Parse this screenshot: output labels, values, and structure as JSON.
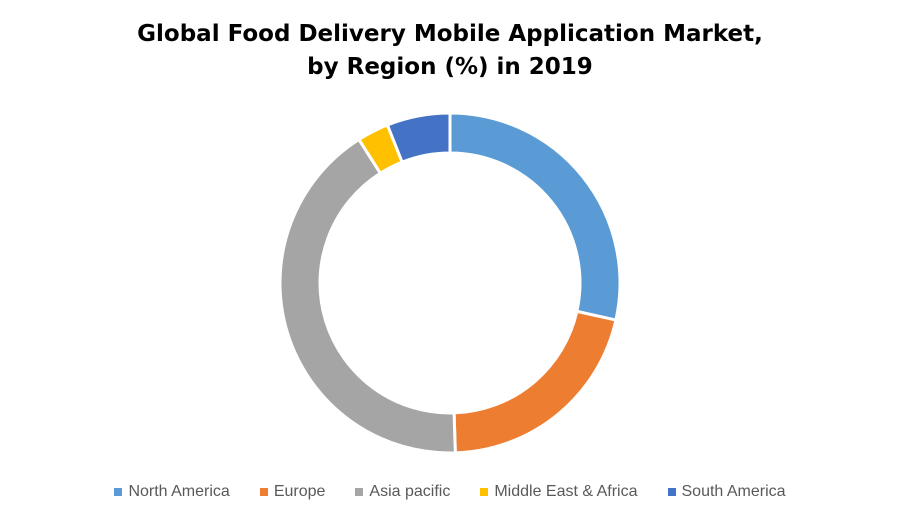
{
  "chart_data": {
    "type": "pie",
    "title": "Global Food Delivery Mobile Application Market,",
    "subtitle": "by Region (%) in 2019",
    "categories": [
      "North America",
      "Europe",
      "Asia pacific",
      "Middle East & Africa",
      "South America"
    ],
    "values": [
      28.5,
      21,
      41.5,
      3,
      6
    ],
    "colors": [
      "#5B9BD5",
      "#ED7D31",
      "#A5A5A5",
      "#FFC000",
      "#4472C4"
    ],
    "legend_position": "bottom",
    "style": "donut"
  }
}
